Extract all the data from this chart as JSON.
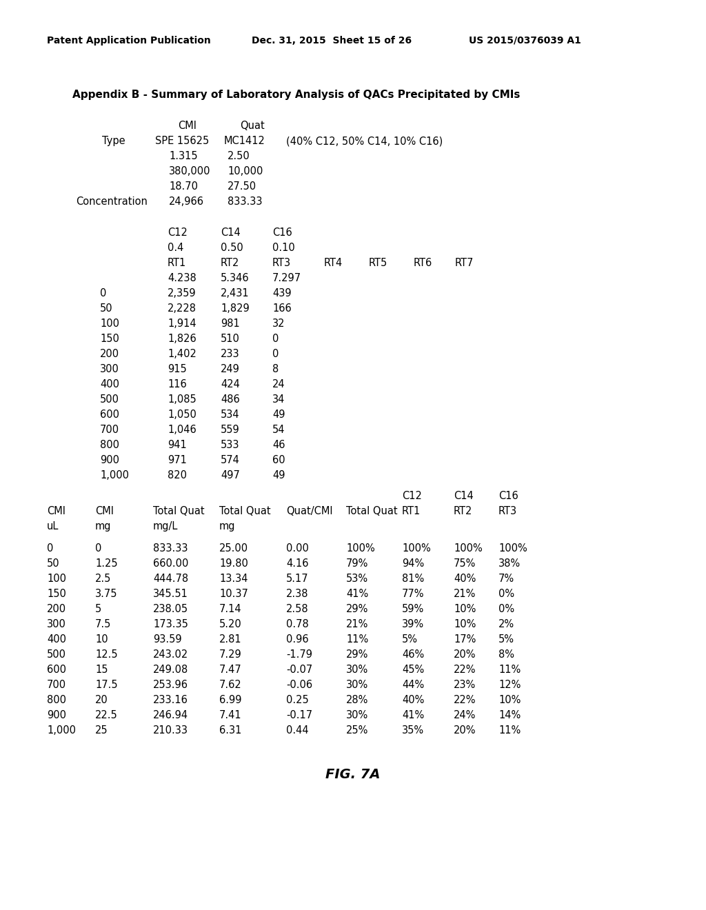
{
  "header_left": "Patent Application Publication",
  "header_mid": "Dec. 31, 2015  Sheet 15 of 26",
  "header_right": "US 2015/0376039 A1",
  "title": "Appendix B - Summary of Laboratory Analysis of QACs Precipitated by CMIs",
  "s1_cmi_label": "CMI",
  "s1_quat_label": "Quat",
  "s1_type_label": "Type",
  "s1_type_cmi": "SPE 15625",
  "s1_type_quat": "MC1412",
  "s1_type_note": "(40% C12, 50% C14, 10% C16)",
  "s1_rows": [
    [
      "",
      "1.315",
      "2.50"
    ],
    [
      "",
      "380,000",
      "10,000"
    ],
    [
      "",
      "18.70",
      "27.50"
    ],
    [
      "Concentration",
      "24,966",
      "833.33"
    ]
  ],
  "s2_c_row": [
    "C12",
    "C14",
    "C16"
  ],
  "s2_frac_row": [
    "0.4",
    "0.50",
    "0.10"
  ],
  "s2_rt_row": [
    "RT1",
    "RT2",
    "RT3",
    "RT4",
    "RT5",
    "RT6",
    "RT7"
  ],
  "s2_val_row": [
    "4.238",
    "5.346",
    "7.297"
  ],
  "section2_data": [
    [
      "0",
      "2,359",
      "2,431",
      "439"
    ],
    [
      "50",
      "2,228",
      "1,829",
      "166"
    ],
    [
      "100",
      "1,914",
      "981",
      "32"
    ],
    [
      "150",
      "1,826",
      "510",
      "0"
    ],
    [
      "200",
      "1,402",
      "233",
      "0"
    ],
    [
      "300",
      "915",
      "249",
      "8"
    ],
    [
      "400",
      "116",
      "424",
      "24"
    ],
    [
      "500",
      "1,085",
      "486",
      "34"
    ],
    [
      "600",
      "1,050",
      "534",
      "49"
    ],
    [
      "700",
      "1,046",
      "559",
      "54"
    ],
    [
      "800",
      "941",
      "533",
      "46"
    ],
    [
      "900",
      "971",
      "574",
      "60"
    ],
    [
      "1,000",
      "820",
      "497",
      "49"
    ]
  ],
  "s3_c12c14c16": [
    "C12",
    "C14",
    "C16"
  ],
  "s3_hdr1": [
    "CMI",
    "CMI",
    "Total Quat",
    "Total Quat",
    "Quat/CMI",
    "Total Quat",
    "RT1",
    "RT2",
    "RT3"
  ],
  "s3_hdr2": [
    "uL",
    "mg",
    "mg/L",
    "mg",
    "",
    "",
    "",
    "",
    ""
  ],
  "section3_data": [
    [
      "0",
      "0",
      "833.33",
      "25.00",
      "0.00",
      "100%",
      "100%",
      "100%",
      "100%"
    ],
    [
      "50",
      "1.25",
      "660.00",
      "19.80",
      "4.16",
      "79%",
      "94%",
      "75%",
      "38%"
    ],
    [
      "100",
      "2.5",
      "444.78",
      "13.34",
      "5.17",
      "53%",
      "81%",
      "40%",
      "7%"
    ],
    [
      "150",
      "3.75",
      "345.51",
      "10.37",
      "2.38",
      "41%",
      "77%",
      "21%",
      "0%"
    ],
    [
      "200",
      "5",
      "238.05",
      "7.14",
      "2.58",
      "29%",
      "59%",
      "10%",
      "0%"
    ],
    [
      "300",
      "7.5",
      "173.35",
      "5.20",
      "0.78",
      "21%",
      "39%",
      "10%",
      "2%"
    ],
    [
      "400",
      "10",
      "93.59",
      "2.81",
      "0.96",
      "11%",
      "5%",
      "17%",
      "5%"
    ],
    [
      "500",
      "12.5",
      "243.02",
      "7.29",
      "-1.79",
      "29%",
      "46%",
      "20%",
      "8%"
    ],
    [
      "600",
      "15",
      "249.08",
      "7.47",
      "-0.07",
      "30%",
      "45%",
      "22%",
      "11%"
    ],
    [
      "700",
      "17.5",
      "253.96",
      "7.62",
      "-0.06",
      "30%",
      "44%",
      "23%",
      "12%"
    ],
    [
      "800",
      "20",
      "233.16",
      "6.99",
      "0.25",
      "28%",
      "40%",
      "22%",
      "10%"
    ],
    [
      "900",
      "22.5",
      "246.94",
      "7.41",
      "-0.17",
      "30%",
      "41%",
      "24%",
      "14%"
    ],
    [
      "1,000",
      "25",
      "210.33",
      "6.31",
      "0.44",
      "25%",
      "35%",
      "20%",
      "11%"
    ]
  ],
  "figure_label": "FIG. 7A",
  "background_color": "#ffffff",
  "text_color": "#000000"
}
